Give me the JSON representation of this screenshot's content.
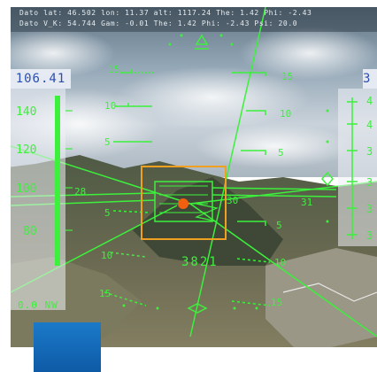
{
  "status_bar": {
    "line1": "Dato lat: 46.502  lon: 11.37  alt: 1117.24  The: 1.42  Phi: -2.43",
    "line2": "Dato V_K: 54.744  Gam: -0.01  The: 1.42  Phi: -2.43  Psi: 20.0"
  },
  "speed": {
    "readout": "106.41",
    "labels": [
      "140",
      "120",
      "100",
      "80"
    ]
  },
  "altitude": {
    "readout": "3",
    "labels": [
      "4",
      "4",
      "3",
      "3",
      "3",
      "3"
    ]
  },
  "pitch_ladder": {
    "labels_left": [
      "15",
      "10",
      "5",
      "5",
      "10",
      "15"
    ],
    "labels_right": [
      "15",
      "10",
      "5",
      "5",
      "10",
      "15"
    ],
    "horizon_left": "28",
    "horizon_right": "30",
    "horizon_far": "31"
  },
  "center": {
    "digits": "3821",
    "track_label": "0.0 NW"
  },
  "colors": {
    "hud_green": "#3cf03c",
    "target_box": "#f0a020",
    "target_dot": "#f06010",
    "readout_blue": "#2a4fb0"
  }
}
